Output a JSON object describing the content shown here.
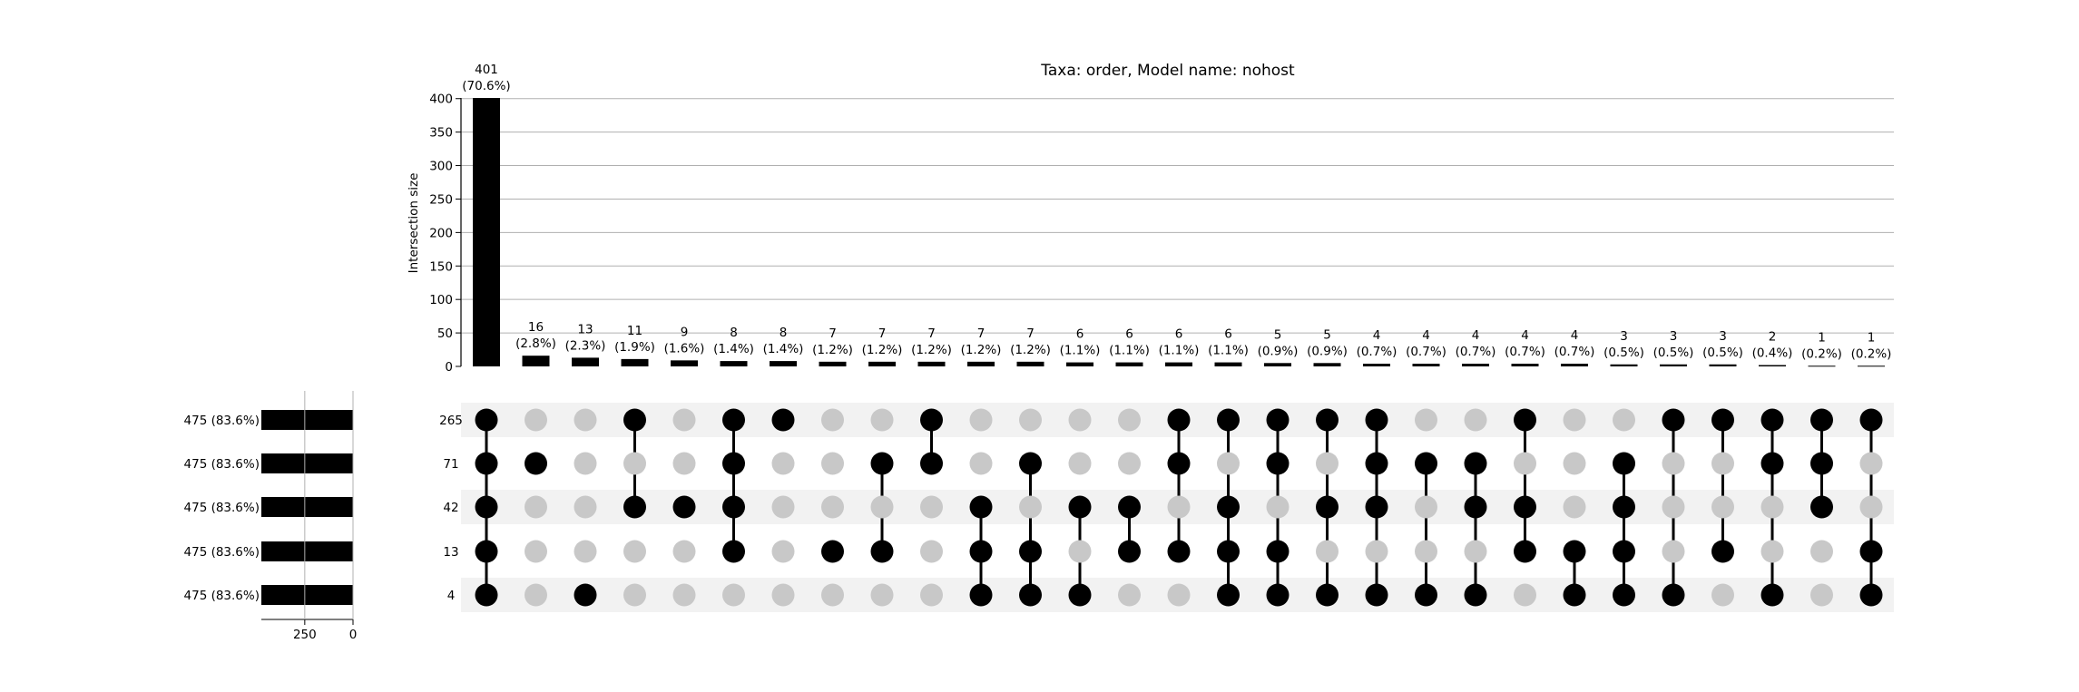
{
  "chart_data": {
    "type": "upset",
    "title": "Taxa: order, Model name: nohost",
    "ylabel": "Intersection size",
    "ylim": [
      0,
      401
    ],
    "yticks": [
      0,
      50,
      100,
      150,
      200,
      250,
      300,
      350,
      400
    ],
    "set_size_axis_ticks": [
      250,
      0
    ],
    "set_size_axis_ticklabels": [
      "250",
      "0"
    ],
    "set_sizes": [
      475,
      475,
      475,
      475,
      475
    ],
    "set_size_labels": [
      "475 (83.6%)",
      "475 (83.6%)",
      "475 (83.6%)",
      "475 (83.6%)",
      "475 (83.6%)"
    ],
    "row_labels": [
      "265",
      "71",
      "42",
      "13",
      "4"
    ],
    "intersections": [
      {
        "value": 401,
        "pct": "(70.6%)",
        "members": [
          0,
          1,
          2,
          3,
          4
        ]
      },
      {
        "value": 16,
        "pct": "(2.8%)",
        "members": [
          1
        ]
      },
      {
        "value": 13,
        "pct": "(2.3%)",
        "members": [
          4
        ]
      },
      {
        "value": 11,
        "pct": "(1.9%)",
        "members": [
          0,
          2
        ]
      },
      {
        "value": 9,
        "pct": "(1.6%)",
        "members": [
          2
        ]
      },
      {
        "value": 8,
        "pct": "(1.4%)",
        "members": [
          0,
          1,
          2,
          3
        ]
      },
      {
        "value": 8,
        "pct": "(1.4%)",
        "members": [
          0
        ]
      },
      {
        "value": 7,
        "pct": "(1.2%)",
        "members": [
          3
        ]
      },
      {
        "value": 7,
        "pct": "(1.2%)",
        "members": [
          1,
          3
        ]
      },
      {
        "value": 7,
        "pct": "(1.2%)",
        "members": [
          0,
          1
        ]
      },
      {
        "value": 7,
        "pct": "(1.2%)",
        "members": [
          2,
          3,
          4
        ]
      },
      {
        "value": 7,
        "pct": "(1.2%)",
        "members": [
          1,
          3,
          4
        ]
      },
      {
        "value": 6,
        "pct": "(1.1%)",
        "members": [
          2,
          4
        ]
      },
      {
        "value": 6,
        "pct": "(1.1%)",
        "members": [
          2,
          3
        ]
      },
      {
        "value": 6,
        "pct": "(1.1%)",
        "members": [
          0,
          1,
          3
        ]
      },
      {
        "value": 6,
        "pct": "(1.1%)",
        "members": [
          0,
          2,
          3,
          4
        ]
      },
      {
        "value": 5,
        "pct": "(0.9%)",
        "members": [
          0,
          1,
          3,
          4
        ]
      },
      {
        "value": 5,
        "pct": "(0.9%)",
        "members": [
          0,
          2,
          4
        ]
      },
      {
        "value": 4,
        "pct": "(0.7%)",
        "members": [
          0,
          1,
          2,
          4
        ]
      },
      {
        "value": 4,
        "pct": "(0.7%)",
        "members": [
          1,
          4
        ]
      },
      {
        "value": 4,
        "pct": "(0.7%)",
        "members": [
          1,
          2,
          4
        ]
      },
      {
        "value": 4,
        "pct": "(0.7%)",
        "members": [
          0,
          2,
          3
        ]
      },
      {
        "value": 4,
        "pct": "(0.7%)",
        "members": [
          3,
          4
        ]
      },
      {
        "value": 3,
        "pct": "(0.5%)",
        "members": [
          1,
          2,
          3,
          4
        ]
      },
      {
        "value": 3,
        "pct": "(0.5%)",
        "members": [
          0,
          4
        ]
      },
      {
        "value": 3,
        "pct": "(0.5%)",
        "members": [
          0,
          3
        ]
      },
      {
        "value": 2,
        "pct": "(0.4%)",
        "members": [
          0,
          1,
          4
        ]
      },
      {
        "value": 1,
        "pct": "(0.2%)",
        "members": [
          0,
          1,
          2
        ]
      },
      {
        "value": 1,
        "pct": "(0.2%)",
        "members": [
          0,
          3,
          4
        ]
      }
    ],
    "colors": {
      "bar": "#000000",
      "dot_active": "#000000",
      "dot_inactive": "#c8c8c8",
      "row_shade": "#f2f2f2",
      "grid": "#b0b0b0"
    },
    "grid": true
  }
}
